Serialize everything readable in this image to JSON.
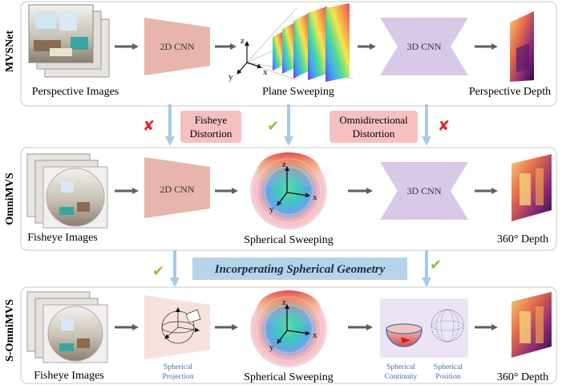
{
  "rows": {
    "mvsnet": {
      "title": "MVSNet",
      "input_caption": "Perspective Images",
      "cnn2d": "2D CNN",
      "sweep_caption": "Plane Sweeping",
      "cnn3d": "3D CNN",
      "output_caption": "Perspective Depth"
    },
    "omnimvs": {
      "title": "OmniMVS",
      "input_caption": "Fisheye Images",
      "cnn2d": "2D CNN",
      "sweep_caption": "Spherical Sweeping",
      "cnn3d": "3D CNN",
      "output_caption": "360° Depth"
    },
    "somnimvs": {
      "title": "S-OmniMVS",
      "input_caption": "Fisheye Images",
      "projection_line1": "Spherical",
      "projection_line2": "Projection",
      "sweep_caption": "Spherical Sweeping",
      "continuity_line1": "Spherical",
      "continuity_line2": "Continuity",
      "position_line1": "Spherical",
      "position_line2": "Position",
      "output_caption": "360° Depth"
    }
  },
  "badges": {
    "fisheye_line1": "Fisheye",
    "fisheye_line2": "Distortion",
    "omni_line1": "Omnidirectional",
    "omni_line2": "Distortion",
    "spherical_geometry": "Incorperating Spherical Geometry"
  },
  "axes": {
    "x": "x",
    "y": "y",
    "z": "z"
  },
  "marks": {
    "cross": "✘",
    "check": "✔"
  },
  "colors": {
    "cnn2d": "#e7b5ab",
    "cnn3d": "#d9c8e6",
    "projection": "#f6e2dc",
    "badge_red": "#f6c0c0",
    "badge_blue": "#b7d3ea",
    "arrow_gray": "#5f5f5f",
    "arrow_blue": "#a9c9e6",
    "cross_red": "#e0282a",
    "check_green": "#8cc63f"
  }
}
